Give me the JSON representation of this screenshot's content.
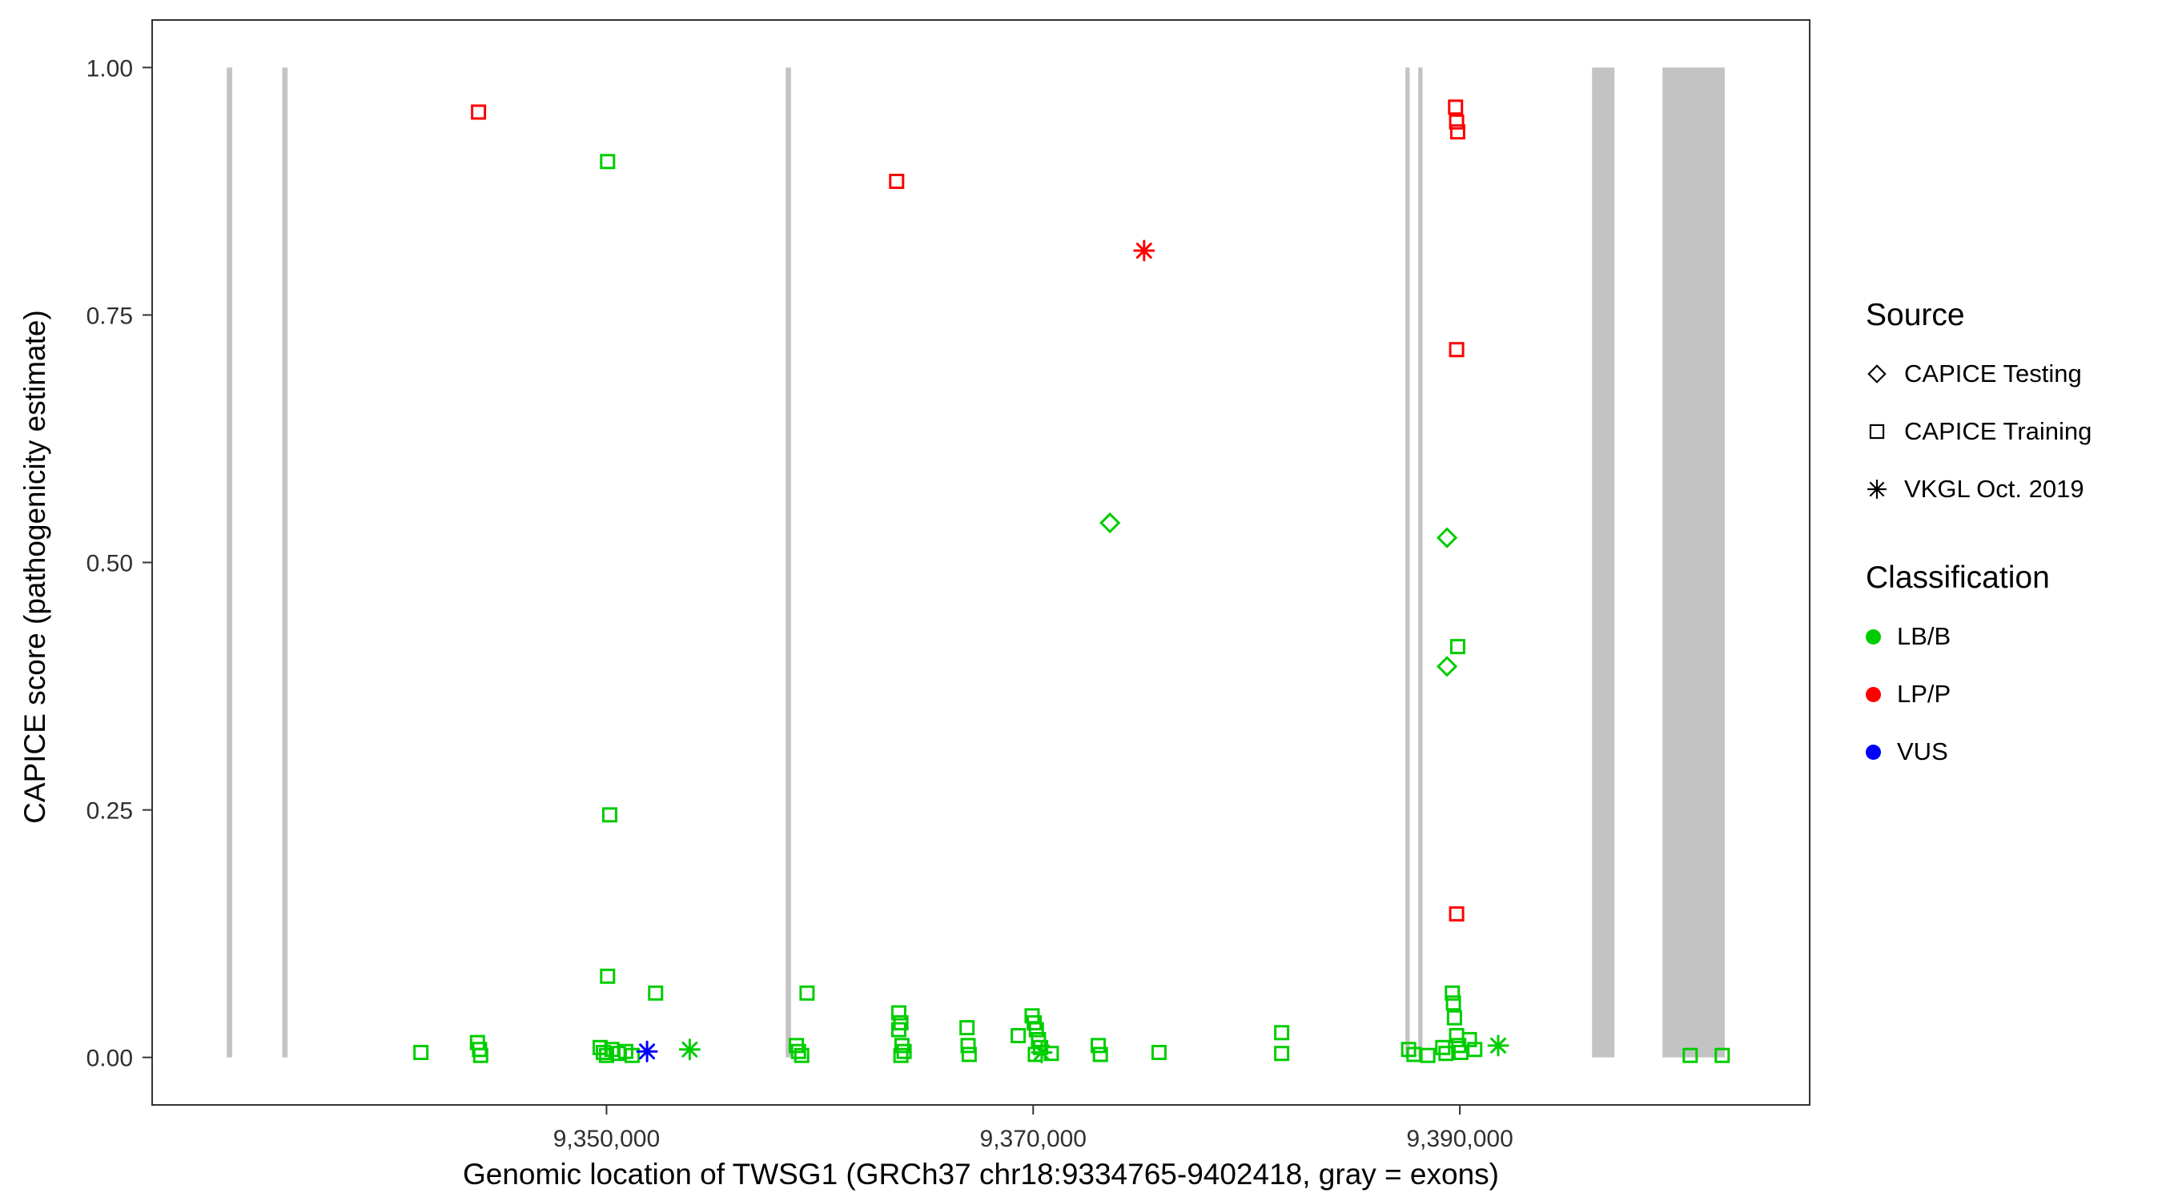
{
  "colors": {
    "lbb": "#00CD00",
    "lpp": "#FF0000",
    "vus": "#0000FF",
    "exon": "#C3C3C3",
    "axis_text": "#303030",
    "panel_border": "#333333"
  },
  "legend": {
    "source_title": "Source",
    "source_items": [
      {
        "label": "CAPICE Testing",
        "marker": "diamond"
      },
      {
        "label": "CAPICE Training",
        "marker": "square"
      },
      {
        "label": "VKGL Oct. 2019",
        "marker": "asterisk"
      }
    ],
    "classification_title": "Classification",
    "classification_items": [
      {
        "label": "LB/B",
        "color_key": "lbb"
      },
      {
        "label": "LP/P",
        "color_key": "lpp"
      },
      {
        "label": "VUS",
        "color_key": "vus"
      }
    ]
  },
  "chart_data": {
    "type": "scatter",
    "title": "",
    "xlabel": "Genomic location of TWSG1 (GRCh37 chr18:9334765-9402418, gray = exons)",
    "ylabel": "CAPICE score (pathogenicity estimate)",
    "xlim": [
      9328700,
      9406400
    ],
    "ylim": [
      0,
      1
    ],
    "ylim_draw": [
      -0.048,
      1.048
    ],
    "grid": false,
    "legend_position": "right",
    "x_ticks": [
      9350000,
      9370000,
      9390000
    ],
    "x_tick_labels": [
      "9,350,000",
      "9,370,000",
      "9,390,000"
    ],
    "y_ticks": [
      0,
      0.25,
      0.5,
      0.75,
      1
    ],
    "y_tick_labels": [
      "0.00",
      "0.25",
      "0.50",
      "0.75",
      "1.00"
    ],
    "exons": [
      [
        9332200,
        9332450
      ],
      [
        9334800,
        9335050
      ],
      [
        9358400,
        9358650
      ],
      [
        9387450,
        9387650
      ],
      [
        9388050,
        9388250
      ],
      [
        9396200,
        9397250
      ],
      [
        9399500,
        9402420
      ]
    ],
    "series": [
      {
        "name": "CAPICE Training / LP/P",
        "source": "CAPICE Training",
        "classification": "LP/P",
        "marker": "square",
        "color_key": "lpp",
        "points": [
          [
            9344000,
            0.955
          ],
          [
            9363600,
            0.885
          ],
          [
            9389800,
            0.96
          ],
          [
            9389850,
            0.945
          ],
          [
            9389900,
            0.935
          ],
          [
            9389850,
            0.715
          ],
          [
            9389850,
            0.145
          ]
        ]
      },
      {
        "name": "CAPICE Training / LB/B",
        "source": "CAPICE Training",
        "classification": "LB/B",
        "marker": "square",
        "color_key": "lbb",
        "points": [
          [
            9350050,
            0.905
          ],
          [
            9350150,
            0.245
          ],
          [
            9350050,
            0.082
          ],
          [
            9352300,
            0.065
          ],
          [
            9359400,
            0.065
          ],
          [
            9341300,
            0.005
          ],
          [
            9343950,
            0.015
          ],
          [
            9344050,
            0.008
          ],
          [
            9344100,
            0.002
          ],
          [
            9349700,
            0.01
          ],
          [
            9349850,
            0.005
          ],
          [
            9350000,
            0.002
          ],
          [
            9350250,
            0.008
          ],
          [
            9350550,
            0.004
          ],
          [
            9350900,
            0.006
          ],
          [
            9351200,
            0.002
          ],
          [
            9358900,
            0.012
          ],
          [
            9359000,
            0.006
          ],
          [
            9359150,
            0.002
          ],
          [
            9363700,
            0.045
          ],
          [
            9363800,
            0.035
          ],
          [
            9363700,
            0.028
          ],
          [
            9363850,
            0.012
          ],
          [
            9363950,
            0.006
          ],
          [
            9363800,
            0.002
          ],
          [
            9366900,
            0.03
          ],
          [
            9366950,
            0.012
          ],
          [
            9367000,
            0.003
          ],
          [
            9369300,
            0.022
          ],
          [
            9369950,
            0.042
          ],
          [
            9370050,
            0.035
          ],
          [
            9370150,
            0.028
          ],
          [
            9370250,
            0.018
          ],
          [
            9370350,
            0.01
          ],
          [
            9370100,
            0.003
          ],
          [
            9370850,
            0.004
          ],
          [
            9373050,
            0.012
          ],
          [
            9373150,
            0.003
          ],
          [
            9375900,
            0.005
          ],
          [
            9381650,
            0.025
          ],
          [
            9381650,
            0.004
          ],
          [
            9387600,
            0.008
          ],
          [
            9387850,
            0.003
          ],
          [
            9388500,
            0.002
          ],
          [
            9389200,
            0.01
          ],
          [
            9389350,
            0.004
          ],
          [
            9389650,
            0.065
          ],
          [
            9389700,
            0.055
          ],
          [
            9389750,
            0.04
          ],
          [
            9389850,
            0.022
          ],
          [
            9389950,
            0.012
          ],
          [
            9390050,
            0.005
          ],
          [
            9389900,
            0.415
          ],
          [
            9390450,
            0.018
          ],
          [
            9390700,
            0.008
          ],
          [
            9400800,
            0.002
          ],
          [
            9402300,
            0.002
          ]
        ]
      },
      {
        "name": "CAPICE Testing / LB/B",
        "source": "CAPICE Testing",
        "classification": "LB/B",
        "marker": "diamond",
        "color_key": "lbb",
        "points": [
          [
            9373600,
            0.54
          ],
          [
            9389400,
            0.525
          ],
          [
            9389400,
            0.395
          ]
        ]
      },
      {
        "name": "VKGL Oct. 2019 / LP/P",
        "source": "VKGL Oct. 2019",
        "classification": "LP/P",
        "marker": "asterisk",
        "color_key": "lpp",
        "points": [
          [
            9375200,
            0.815
          ]
        ]
      },
      {
        "name": "VKGL Oct. 2019 / LB/B",
        "source": "VKGL Oct. 2019",
        "classification": "LB/B",
        "marker": "asterisk",
        "color_key": "lbb",
        "points": [
          [
            9353900,
            0.008
          ],
          [
            9370400,
            0.005
          ],
          [
            9391800,
            0.012
          ]
        ]
      },
      {
        "name": "VKGL Oct. 2019 / VUS",
        "source": "VKGL Oct. 2019",
        "classification": "VUS",
        "marker": "asterisk",
        "color_key": "vus",
        "points": [
          [
            9351900,
            0.006
          ]
        ]
      }
    ]
  }
}
